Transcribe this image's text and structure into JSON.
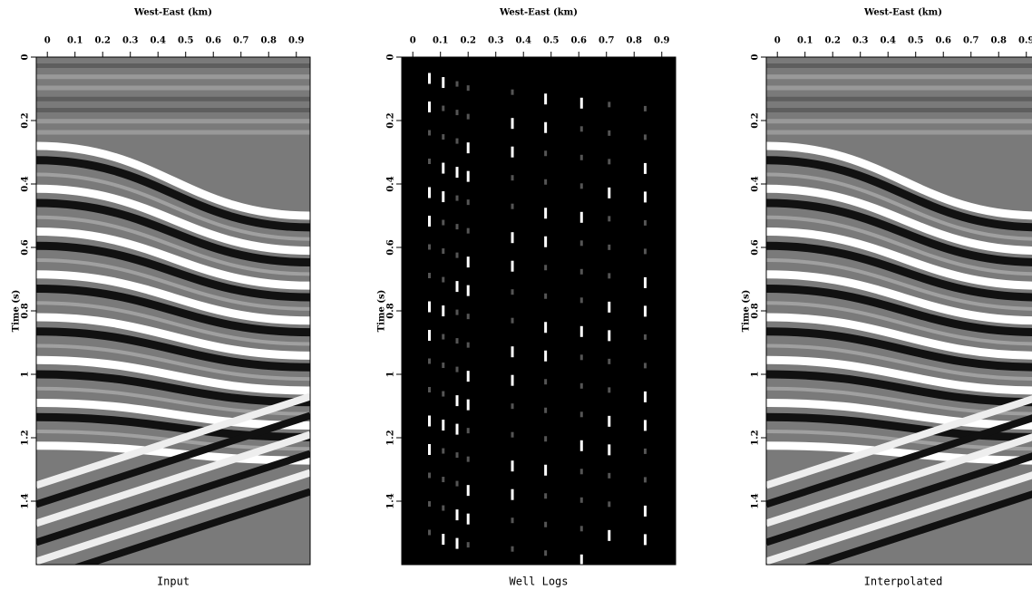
{
  "chart_data": [
    {
      "type": "seismic",
      "xlabel": "West-East (km)",
      "ylabel": "Time (s)",
      "caption": "Input",
      "xlim": [
        -0.04,
        0.95
      ],
      "ylim": [
        0,
        1.6
      ],
      "xticks": [
        0,
        0.1,
        0.2,
        0.3,
        0.4,
        0.5,
        0.6,
        0.7,
        0.8,
        0.9
      ],
      "yticks": [
        0,
        0.2,
        0.4,
        0.6,
        0.8,
        1,
        1.2,
        1.4
      ]
    },
    {
      "type": "welllogs",
      "xlabel": "West-East (km)",
      "ylabel": "Time (s)",
      "caption": "Well Logs",
      "xlim": [
        -0.04,
        0.95
      ],
      "ylim": [
        0,
        1.6
      ],
      "xticks": [
        0,
        0.1,
        0.2,
        0.3,
        0.4,
        0.5,
        0.6,
        0.7,
        0.8,
        0.9
      ],
      "yticks": [
        0,
        0.2,
        0.4,
        0.6,
        0.8,
        1,
        1.2,
        1.4
      ]
    },
    {
      "type": "seismic",
      "xlabel": "West-East (km)",
      "ylabel": "Time (s)",
      "caption": "Interpolated",
      "xlim": [
        -0.04,
        0.95
      ],
      "ylim": [
        0,
        1.6
      ],
      "xticks": [
        0,
        0.1,
        0.2,
        0.3,
        0.4,
        0.5,
        0.6,
        0.7,
        0.8,
        0.9
      ],
      "yticks": [
        0,
        0.2,
        0.4,
        0.6,
        0.8,
        1,
        1.2,
        1.4
      ]
    }
  ]
}
